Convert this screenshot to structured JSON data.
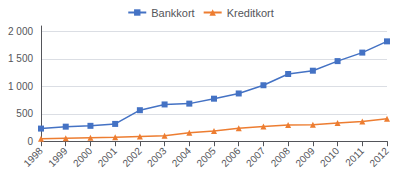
{
  "chart_data": {
    "type": "line",
    "categories": [
      "1998",
      "1999",
      "2000",
      "2001",
      "2002",
      "2003",
      "2004",
      "2005",
      "2006",
      "2007",
      "2008",
      "2009",
      "2010",
      "2011",
      "2012"
    ],
    "series": [
      {
        "name": "Bankkort",
        "color": "#4472C4",
        "marker": "square",
        "values": [
          230,
          265,
          280,
          315,
          565,
          670,
          685,
          775,
          870,
          1020,
          1225,
          1285,
          1460,
          1615,
          1820
        ]
      },
      {
        "name": "Kreditkort",
        "color": "#ED7D31",
        "marker": "triangle",
        "values": [
          45,
          55,
          65,
          70,
          85,
          100,
          155,
          185,
          235,
          270,
          295,
          300,
          330,
          360,
          410
        ]
      }
    ],
    "ylim": [
      0,
      2100
    ],
    "yticks": [
      0,
      500,
      {
        "value": 1000,
        "label": "1 000"
      },
      {
        "value": 1500,
        "label": "1 500"
      },
      {
        "value": 2000,
        "label": "2 000"
      }
    ],
    "grid": true,
    "legend": "top"
  }
}
